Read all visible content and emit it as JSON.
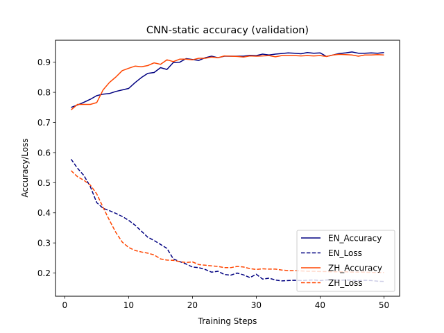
{
  "chart_data": {
    "type": "line",
    "title": "CNN-static accuracy (validation)",
    "xlabel": "Training Steps",
    "ylabel": "Accuracy/Loss",
    "xlim": [
      -1.45,
      52.45
    ],
    "ylim": [
      0.123,
      0.973
    ],
    "xticks": [
      0,
      10,
      20,
      30,
      40,
      50
    ],
    "yticks": [
      0.2,
      0.3,
      0.4,
      0.5,
      0.6,
      0.7,
      0.8,
      0.9
    ],
    "ytick_labels": [
      "0.2",
      "0.3",
      "0.4",
      "0.5",
      "0.6",
      "0.7",
      "0.8",
      "0.9"
    ],
    "grid": false,
    "legend_position": "lower right",
    "x": [
      1,
      2,
      3,
      4,
      5,
      6,
      7,
      8,
      9,
      10,
      11,
      12,
      13,
      14,
      15,
      16,
      17,
      18,
      19,
      20,
      21,
      22,
      23,
      24,
      25,
      26,
      27,
      28,
      29,
      30,
      31,
      32,
      33,
      34,
      35,
      36,
      37,
      38,
      39,
      40,
      41,
      42,
      43,
      44,
      45,
      46,
      47,
      48,
      49,
      50
    ],
    "series": [
      {
        "name": "EN_Accuracy",
        "color": "#000080",
        "style": "solid",
        "values": [
          0.75,
          0.758,
          0.767,
          0.777,
          0.789,
          0.794,
          0.796,
          0.803,
          0.808,
          0.813,
          0.832,
          0.849,
          0.863,
          0.866,
          0.882,
          0.876,
          0.899,
          0.9,
          0.912,
          0.909,
          0.906,
          0.915,
          0.92,
          0.915,
          0.92,
          0.92,
          0.92,
          0.92,
          0.923,
          0.922,
          0.927,
          0.924,
          0.927,
          0.929,
          0.931,
          0.93,
          0.928,
          0.932,
          0.93,
          0.931,
          0.919,
          0.924,
          0.929,
          0.931,
          0.934,
          0.93,
          0.93,
          0.931,
          0.93,
          0.932
        ]
      },
      {
        "name": "EN_Loss",
        "color": "#000080",
        "style": "dashed",
        "values": [
          0.578,
          0.548,
          0.524,
          0.487,
          0.434,
          0.415,
          0.407,
          0.398,
          0.388,
          0.375,
          0.359,
          0.339,
          0.319,
          0.308,
          0.295,
          0.282,
          0.247,
          0.238,
          0.23,
          0.22,
          0.218,
          0.212,
          0.203,
          0.206,
          0.195,
          0.193,
          0.2,
          0.194,
          0.185,
          0.196,
          0.18,
          0.183,
          0.177,
          0.174,
          0.175,
          0.176,
          0.175,
          0.176,
          0.177,
          0.175,
          0.177,
          0.178,
          0.176,
          0.177,
          0.176,
          0.175,
          0.176,
          0.175,
          0.173,
          0.172
        ]
      },
      {
        "name": "ZH_Accuracy",
        "color": "#ff4500",
        "style": "solid",
        "values": [
          0.742,
          0.76,
          0.76,
          0.76,
          0.766,
          0.808,
          0.833,
          0.851,
          0.872,
          0.88,
          0.887,
          0.885,
          0.889,
          0.898,
          0.893,
          0.908,
          0.902,
          0.91,
          0.91,
          0.908,
          0.913,
          0.913,
          0.917,
          0.915,
          0.921,
          0.92,
          0.919,
          0.917,
          0.921,
          0.92,
          0.921,
          0.922,
          0.918,
          0.922,
          0.922,
          0.922,
          0.921,
          0.922,
          0.921,
          0.922,
          0.919,
          0.924,
          0.926,
          0.925,
          0.924,
          0.92,
          0.924,
          0.924,
          0.925,
          0.924
        ]
      },
      {
        "name": "ZH_Loss",
        "color": "#ff4500",
        "style": "dashed",
        "values": [
          0.54,
          0.52,
          0.508,
          0.492,
          0.463,
          0.418,
          0.375,
          0.335,
          0.303,
          0.285,
          0.275,
          0.27,
          0.266,
          0.26,
          0.247,
          0.243,
          0.242,
          0.238,
          0.235,
          0.237,
          0.228,
          0.226,
          0.224,
          0.222,
          0.218,
          0.218,
          0.222,
          0.22,
          0.215,
          0.212,
          0.214,
          0.213,
          0.213,
          0.21,
          0.208,
          0.208,
          0.207,
          0.206,
          0.206,
          0.205,
          0.205,
          0.204,
          0.204,
          0.204,
          0.203,
          0.203,
          0.203,
          0.202,
          0.202,
          0.202
        ]
      }
    ]
  }
}
